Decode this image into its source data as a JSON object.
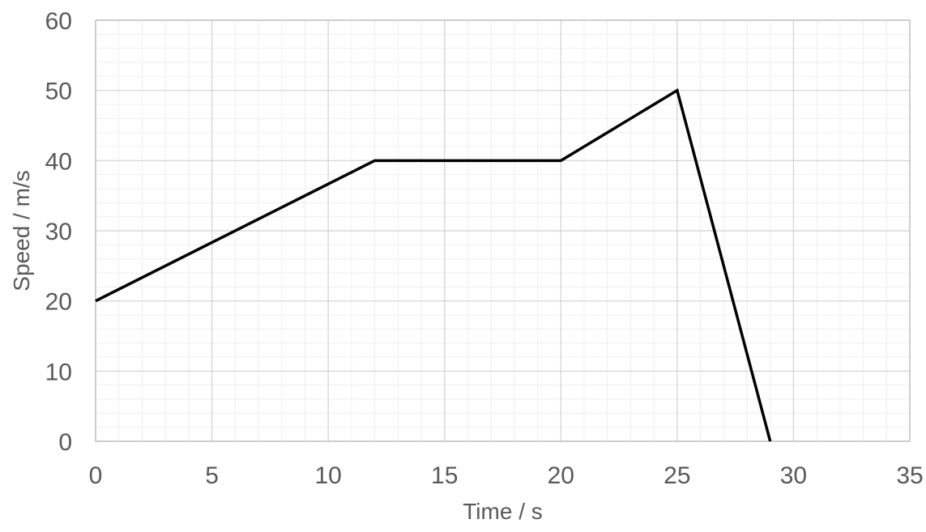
{
  "chart_data": {
    "type": "line",
    "title": "",
    "xlabel": "Time / s",
    "ylabel": "Speed / m/s",
    "xlim": [
      0,
      35
    ],
    "ylim": [
      0,
      60
    ],
    "x_ticks": [
      0,
      5,
      10,
      15,
      20,
      25,
      30,
      35
    ],
    "y_ticks": [
      0,
      10,
      20,
      30,
      40,
      50,
      60
    ],
    "x_minor_step": 1,
    "y_minor_step": 2,
    "grid": "major and minor gridlines on",
    "legend_position": "none",
    "series": [
      {
        "name": "speed",
        "points": [
          [
            0,
            20
          ],
          [
            12,
            40
          ],
          [
            20,
            40
          ],
          [
            25,
            50
          ],
          [
            29,
            0
          ]
        ],
        "color": "#000000",
        "line_width": 3.5
      }
    ],
    "colors": {
      "background": "#ffffff",
      "major_grid": "#d0d0d0",
      "minor_grid": "#efefef",
      "plot_border": "#bfbfbf",
      "tick_label": "#595959",
      "axis_title": "#595959"
    }
  }
}
